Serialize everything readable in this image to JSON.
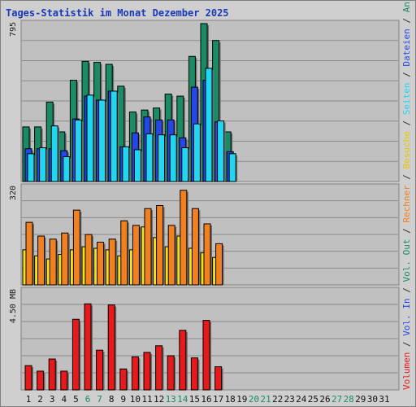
{
  "chart_data": {
    "type": "bar",
    "title": "Tages-Statistik im Monat Dezember 2025",
    "days": [
      "1",
      "2",
      "3",
      "4",
      "5",
      "6",
      "7",
      "8",
      "9",
      "10",
      "11",
      "12",
      "13",
      "14",
      "15",
      "16",
      "17",
      "18",
      "19",
      "20",
      "21",
      "22",
      "23",
      "24",
      "25",
      "26",
      "27",
      "28",
      "29",
      "30",
      "31"
    ],
    "weekend_days": [
      "6",
      "7",
      "13",
      "14",
      "20",
      "21",
      "27",
      "28"
    ],
    "panels": [
      {
        "id": "top",
        "ylabel_max": "795",
        "ylim": [
          0,
          795
        ],
        "series": [
          {
            "name": "Anfragen",
            "color": "#1a8b63",
            "values": [
              275,
              275,
              400,
              250,
              510,
              605,
              600,
              590,
              480,
              350,
              360,
              370,
              440,
              430,
              630,
              795,
              710,
              250,
              0,
              0,
              0,
              0,
              0,
              0,
              0,
              0,
              0,
              0,
              0,
              0,
              0
            ]
          },
          {
            "name": "Dateien",
            "color": "#2547e6",
            "values": [
              165,
              165,
              165,
              155,
              315,
              430,
              410,
              455,
              175,
              245,
              325,
              310,
              310,
              220,
              475,
              510,
              300,
              150,
              0,
              0,
              0,
              0,
              0,
              0,
              0,
              0,
              0,
              0,
              0,
              0,
              0
            ]
          },
          {
            "name": "Seiten",
            "color": "#22d6f2",
            "values": [
              140,
              170,
              280,
              125,
              310,
              435,
              410,
              455,
              175,
              160,
              240,
              235,
              235,
              170,
              290,
              570,
              305,
              140,
              0,
              0,
              0,
              0,
              0,
              0,
              0,
              0,
              0,
              0,
              0,
              0,
              0
            ]
          }
        ]
      },
      {
        "id": "middle",
        "ylabel_max": "320",
        "ylim": [
          0,
          320
        ],
        "series": [
          {
            "name": "Besuche",
            "color": "#f5e01a",
            "values": [
              115,
              95,
              85,
              100,
              115,
              125,
              120,
              115,
              95,
              115,
              190,
              155,
              125,
              160,
              120,
              105,
              90,
              0,
              0,
              0,
              0,
              0,
              0,
              0,
              0,
              0,
              0,
              0,
              0,
              0,
              0
            ]
          },
          {
            "name": "Rechner",
            "color": "#f08020",
            "values": [
              205,
              160,
              150,
              170,
              245,
              165,
              140,
              150,
              210,
              195,
              250,
              260,
              195,
              310,
              250,
              200,
              135,
              0,
              0,
              0,
              0,
              0,
              0,
              0,
              0,
              0,
              0,
              0,
              0,
              0,
              0
            ]
          }
        ]
      },
      {
        "id": "bottom",
        "ylabel_max": "4.50 MB",
        "ylim": [
          0,
          4.5
        ],
        "series": [
          {
            "name": "Volumen",
            "color": "#e61a1a",
            "values": [
              1.1,
              0.85,
              1.4,
              0.85,
              3.2,
              3.9,
              1.8,
              3.85,
              0.95,
              1.5,
              1.7,
              2.0,
              1.55,
              2.7,
              1.45,
              3.15,
              1.05,
              0,
              0,
              0,
              0,
              0,
              0,
              0,
              0,
              0,
              0,
              0,
              0,
              0,
              0
            ]
          }
        ]
      }
    ],
    "right_legend": [
      {
        "text": "Volumen",
        "color": "#e61a1a"
      },
      {
        "text": " / ",
        "color": "#303030"
      },
      {
        "text": "Vol. In",
        "color": "#2547e6"
      },
      {
        "text": " / ",
        "color": "#303030"
      },
      {
        "text": "Vol. Out",
        "color": "#1a8b63"
      },
      {
        "text": " / ",
        "color": "#303030"
      },
      {
        "text": "Rechner",
        "color": "#f08020"
      },
      {
        "text": " / ",
        "color": "#303030"
      },
      {
        "text": "Besuche",
        "color": "#e6c800"
      },
      {
        "text": " / ",
        "color": "#303030"
      },
      {
        "text": "Seiten",
        "color": "#22d6f2"
      },
      {
        "text": " / ",
        "color": "#303030"
      },
      {
        "text": "Dateien",
        "color": "#2547e6"
      },
      {
        "text": " / ",
        "color": "#303030"
      },
      {
        "text": "Anfragen",
        "color": "#1a8b63"
      }
    ],
    "grid": true,
    "colors": {
      "plot_bg": "#c0c0c0",
      "frame_bg": "#cfcfcf",
      "title": "#1a38b8",
      "weekend_label": "#1a8b63",
      "weekday_label": "#101010"
    }
  }
}
